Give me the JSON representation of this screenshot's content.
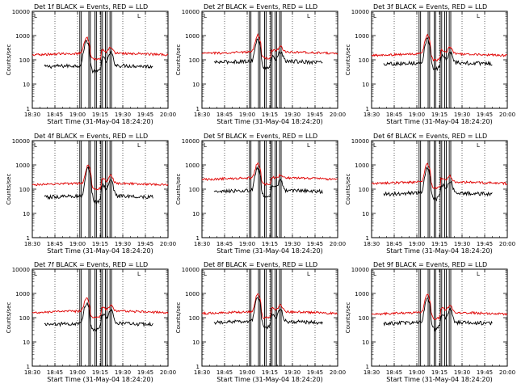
{
  "chart_data": {
    "type": "line",
    "x_tick_labels": [
      "18:30",
      "18:45",
      "19:00",
      "19:15",
      "19:30",
      "19:45",
      "20:00"
    ],
    "x_range_minutes": [
      0,
      90
    ],
    "y_tick_labels": [
      "1",
      "10",
      "100",
      "1000",
      "10000"
    ],
    "y_scale": "log",
    "ylim": [
      1,
      10000
    ],
    "ylabel": "Counts/sec",
    "xlabel": "Start Time (31-May-04 18:24:20)",
    "grid": "vertical dotted lines at each x tick",
    "colors": {
      "events": "#000000",
      "lld": "#e00000"
    },
    "corner_glyph": "L",
    "panels": [
      {
        "title": "Det 1f BLACK = Events, RED = LLD",
        "lld_base": 160,
        "ev_base": 50,
        "bands": [
          [
            31.5,
            32.5
          ],
          [
            37.5,
            38.5
          ],
          [
            41.5,
            42.5
          ],
          [
            45.5,
            46.5
          ],
          [
            48.5,
            49.5
          ],
          [
            51.5,
            52.5
          ]
        ],
        "lld_peaks": [
          [
            36,
            800
          ],
          [
            47,
            220
          ],
          [
            52,
            300
          ]
        ],
        "ev_peaks": [
          [
            36,
            600
          ],
          [
            47,
            110
          ],
          [
            52,
            180
          ]
        ]
      },
      {
        "title": "Det 2f BLACK = Events, RED = LLD",
        "lld_base": 180,
        "ev_base": 75,
        "bands": [
          [
            31.5,
            32.5
          ],
          [
            37.5,
            38.5
          ],
          [
            41.5,
            42.5
          ],
          [
            45.5,
            46.5
          ],
          [
            48.5,
            49.5
          ],
          [
            51.5,
            52.5
          ]
        ],
        "lld_peaks": [
          [
            37,
            1000
          ],
          [
            47,
            220
          ],
          [
            52,
            320
          ]
        ],
        "ev_peaks": [
          [
            37,
            650
          ],
          [
            47,
            120
          ],
          [
            52,
            200
          ]
        ]
      },
      {
        "title": "Det 3f BLACK = Events, RED = LLD",
        "lld_base": 150,
        "ev_base": 65,
        "bands": [
          [
            31.5,
            32.5
          ],
          [
            37.5,
            38.5
          ],
          [
            41.5,
            42.5
          ],
          [
            45.5,
            46.5
          ],
          [
            48.5,
            49.5
          ],
          [
            51.5,
            52.5
          ]
        ],
        "lld_peaks": [
          [
            37,
            1000
          ],
          [
            47,
            230
          ],
          [
            52,
            300
          ]
        ],
        "ev_peaks": [
          [
            37,
            700
          ],
          [
            47,
            130
          ],
          [
            52,
            200
          ]
        ]
      },
      {
        "title": "Det 4f BLACK = Events, RED = LLD",
        "lld_base": 150,
        "ev_base": 45,
        "bands": [
          [
            31.5,
            32.5
          ],
          [
            37.5,
            38.5
          ],
          [
            41.5,
            42.5
          ],
          [
            45.5,
            46.5
          ],
          [
            48.5,
            49.5
          ],
          [
            51.5,
            52.5
          ]
        ],
        "lld_peaks": [
          [
            37,
            900
          ],
          [
            47,
            250
          ],
          [
            52,
            350
          ]
        ],
        "ev_peaks": [
          [
            37,
            700
          ],
          [
            47,
            130
          ],
          [
            52,
            220
          ]
        ]
      },
      {
        "title": "Det 5f BLACK = Events, RED = LLD",
        "lld_base": 250,
        "ev_base": 75,
        "bands": [
          [
            31.5,
            32.5
          ],
          [
            37.5,
            38.5
          ],
          [
            41.5,
            42.5
          ],
          [
            45.5,
            46.5
          ],
          [
            48.5,
            49.5
          ],
          [
            51.5,
            52.5
          ]
        ],
        "lld_peaks": [
          [
            37,
            1100
          ],
          [
            47,
            260
          ],
          [
            52,
            330
          ]
        ],
        "ev_peaks": [
          [
            37,
            750
          ],
          [
            47,
            140
          ],
          [
            52,
            210
          ]
        ]
      },
      {
        "title": "Det 6f BLACK = Events, RED = LLD",
        "lld_base": 170,
        "ev_base": 60,
        "bands": [
          [
            31.5,
            32.5
          ],
          [
            37.5,
            38.5
          ],
          [
            41.5,
            42.5
          ],
          [
            45.5,
            46.5
          ],
          [
            48.5,
            49.5
          ],
          [
            51.5,
            52.5
          ]
        ],
        "lld_peaks": [
          [
            37,
            1100
          ],
          [
            47,
            250
          ],
          [
            52,
            320
          ]
        ],
        "ev_peaks": [
          [
            37,
            750
          ],
          [
            47,
            140
          ],
          [
            52,
            210
          ]
        ]
      },
      {
        "title": "Det 7f BLACK = Events, RED = LLD",
        "lld_base": 160,
        "ev_base": 50,
        "bands": [
          [
            31.5,
            32.5
          ],
          [
            37.5,
            38.5
          ],
          [
            41.5,
            42.5
          ],
          [
            45.5,
            46.5
          ],
          [
            48.5,
            49.5
          ],
          [
            51.5,
            52.5
          ]
        ],
        "lld_peaks": [
          [
            36,
            600
          ],
          [
            47,
            230
          ],
          [
            52,
            300
          ]
        ],
        "ev_peaks": [
          [
            36,
            400
          ],
          [
            47,
            130
          ],
          [
            52,
            200
          ]
        ]
      },
      {
        "title": "Det 8f BLACK = Events, RED = LLD",
        "lld_base": 150,
        "ev_base": 60,
        "bands": [
          [
            31.5,
            32.5
          ],
          [
            37.5,
            38.5
          ],
          [
            41.5,
            42.5
          ],
          [
            45.5,
            46.5
          ],
          [
            48.5,
            49.5
          ],
          [
            51.5,
            52.5
          ]
        ],
        "lld_peaks": [
          [
            37,
            950
          ],
          [
            47,
            230
          ],
          [
            52,
            300
          ]
        ],
        "ev_peaks": [
          [
            37,
            650
          ],
          [
            47,
            130
          ],
          [
            52,
            200
          ]
        ]
      },
      {
        "title": "Det 9f BLACK = Events, RED = LLD",
        "lld_base": 140,
        "ev_base": 55,
        "bands": [
          [
            31.5,
            32.5
          ],
          [
            37.5,
            38.5
          ],
          [
            41.5,
            42.5
          ],
          [
            45.5,
            46.5
          ],
          [
            48.5,
            49.5
          ],
          [
            51.5,
            52.5
          ]
        ],
        "lld_peaks": [
          [
            37,
            900
          ],
          [
            47,
            230
          ],
          [
            52,
            300
          ]
        ],
        "ev_peaks": [
          [
            37,
            600
          ],
          [
            47,
            130
          ],
          [
            52,
            200
          ]
        ]
      }
    ]
  }
}
